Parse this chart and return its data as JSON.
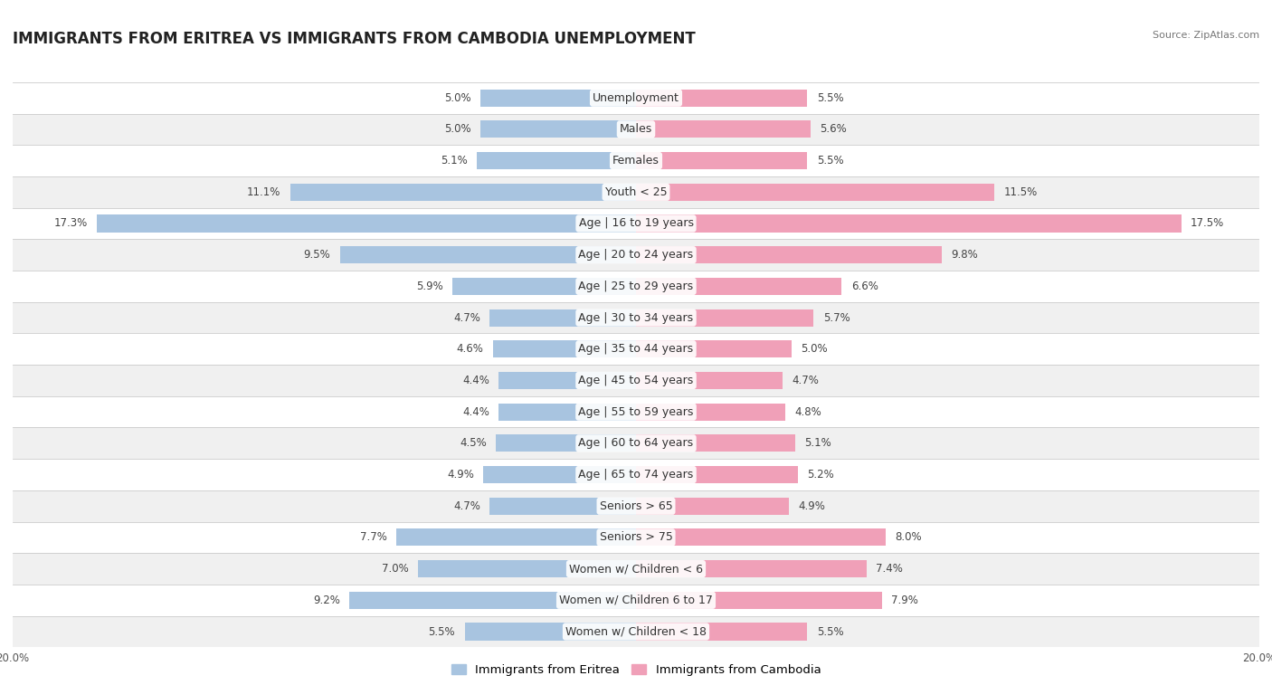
{
  "title": "IMMIGRANTS FROM ERITREA VS IMMIGRANTS FROM CAMBODIA UNEMPLOYMENT",
  "source": "Source: ZipAtlas.com",
  "categories": [
    "Unemployment",
    "Males",
    "Females",
    "Youth < 25",
    "Age | 16 to 19 years",
    "Age | 20 to 24 years",
    "Age | 25 to 29 years",
    "Age | 30 to 34 years",
    "Age | 35 to 44 years",
    "Age | 45 to 54 years",
    "Age | 55 to 59 years",
    "Age | 60 to 64 years",
    "Age | 65 to 74 years",
    "Seniors > 65",
    "Seniors > 75",
    "Women w/ Children < 6",
    "Women w/ Children 6 to 17",
    "Women w/ Children < 18"
  ],
  "eritrea_values": [
    5.0,
    5.0,
    5.1,
    11.1,
    17.3,
    9.5,
    5.9,
    4.7,
    4.6,
    4.4,
    4.4,
    4.5,
    4.9,
    4.7,
    7.7,
    7.0,
    9.2,
    5.5
  ],
  "cambodia_values": [
    5.5,
    5.6,
    5.5,
    11.5,
    17.5,
    9.8,
    6.6,
    5.7,
    5.0,
    4.7,
    4.8,
    5.1,
    5.2,
    4.9,
    8.0,
    7.4,
    7.9,
    5.5
  ],
  "eritrea_color": "#a8c4e0",
  "cambodia_color": "#f0a0b8",
  "label_eritrea": "Immigrants from Eritrea",
  "label_cambodia": "Immigrants from Cambodia",
  "axis_limit": 20.0,
  "bg_row_even": "#f0f0f0",
  "bg_row_odd": "#ffffff",
  "title_fontsize": 12,
  "label_fontsize": 9,
  "value_fontsize": 8.5,
  "legend_fontsize": 9.5,
  "axis_label_fontsize": 8.5
}
